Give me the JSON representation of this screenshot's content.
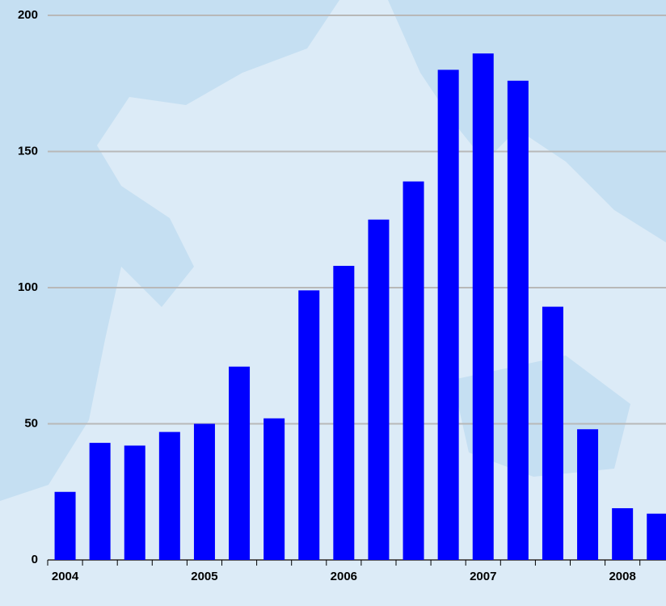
{
  "chart_data": {
    "type": "bar",
    "categories": [
      "2004",
      null,
      null,
      null,
      "2005",
      null,
      null,
      null,
      "2006",
      null,
      null,
      null,
      "2007",
      null,
      null,
      null,
      "2008",
      null
    ],
    "values": [
      25,
      43,
      42,
      47,
      50,
      71,
      52,
      99,
      108,
      125,
      139,
      180,
      186,
      176,
      93,
      48,
      19,
      17
    ],
    "color": "#0000ff",
    "ylim": [
      0,
      200
    ],
    "yticks": [
      0,
      50,
      100,
      150,
      200
    ],
    "grid": true
  }
}
